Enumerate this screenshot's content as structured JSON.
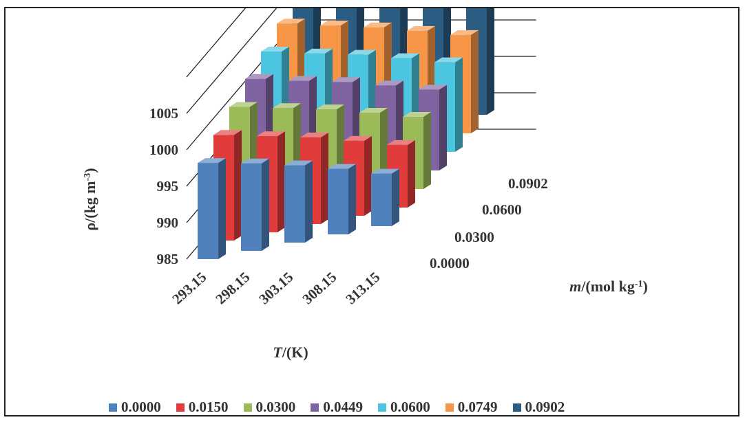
{
  "chart_data": {
    "type": "bar",
    "subtype": "3d-column",
    "x_axis": {
      "title": "T/(K)",
      "title_italic_part": "T",
      "categories": [
        "293.15",
        "298.15",
        "303.15",
        "308.15",
        "313.15"
      ]
    },
    "depth_axis": {
      "title": "m/(mol kg-1)",
      "tick_labels": [
        "0.0000",
        "0.0300",
        "0.0600",
        "0.0902"
      ]
    },
    "y_axis": {
      "title": "ρ/(kg m-3)",
      "ticks": [
        985,
        990,
        995,
        1000,
        1005
      ],
      "range": [
        985,
        1010
      ]
    },
    "series": [
      {
        "name": "0.0000",
        "color": "#4f81bd",
        "values": [
          998.2,
          997.0,
          995.6,
          994.0,
          992.2
        ]
      },
      {
        "name": "0.0150",
        "color": "#e03c3c",
        "values": [
          999.5,
          998.2,
          996.9,
          995.3,
          993.6
        ]
      },
      {
        "name": "0.0300",
        "color": "#9bbb59",
        "values": [
          1000.8,
          999.5,
          998.2,
          996.6,
          994.9
        ]
      },
      {
        "name": "0.0449",
        "color": "#8064a2",
        "values": [
          1002.1,
          1000.7,
          999.4,
          997.8,
          996.1
        ]
      },
      {
        "name": "0.0600",
        "color": "#4bc5e0",
        "values": [
          1003.3,
          1001.9,
          1000.6,
          999.0,
          997.3
        ]
      },
      {
        "name": "0.0749",
        "color": "#f79646",
        "values": [
          1004.6,
          1003.2,
          1001.8,
          1000.2,
          998.5
        ]
      },
      {
        "name": "0.0902",
        "color": "#2b5d82",
        "values": [
          1005.9,
          1004.4,
          1003.0,
          1001.4,
          999.7
        ]
      }
    ],
    "legend_position": "bottom",
    "gridlines": true
  }
}
